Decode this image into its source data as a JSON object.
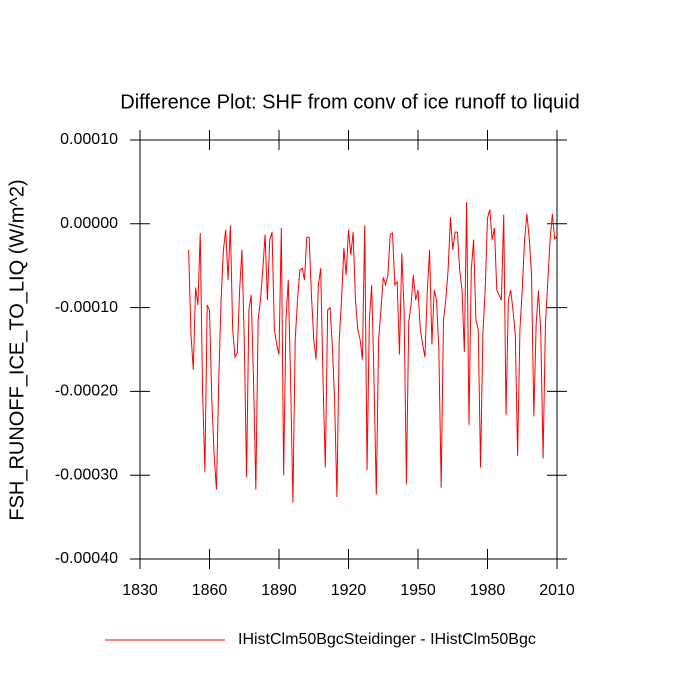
{
  "chart_data": {
    "type": "line",
    "title": "Difference Plot: SHF from conv of ice runoff to liquid",
    "y_label": "FSH_RUNOFF_ICE_TO_LIQ  (W/m^2)",
    "x": [
      1851,
      1852,
      1853,
      1854,
      1855,
      1856,
      1857,
      1858,
      1859,
      1860,
      1861,
      1862,
      1863,
      1864,
      1865,
      1866,
      1867,
      1868,
      1869,
      1870,
      1871,
      1872,
      1873,
      1874,
      1875,
      1876,
      1877,
      1878,
      1879,
      1880,
      1881,
      1882,
      1883,
      1884,
      1885,
      1886,
      1887,
      1888,
      1889,
      1890,
      1891,
      1892,
      1893,
      1894,
      1895,
      1896,
      1897,
      1898,
      1899,
      1900,
      1901,
      1902,
      1903,
      1904,
      1905,
      1906,
      1907,
      1908,
      1909,
      1910,
      1911,
      1912,
      1913,
      1914,
      1915,
      1916,
      1917,
      1918,
      1919,
      1920,
      1921,
      1922,
      1923,
      1924,
      1925,
      1926,
      1927,
      1928,
      1929,
      1930,
      1931,
      1932,
      1933,
      1934,
      1935,
      1936,
      1937,
      1938,
      1939,
      1940,
      1941,
      1942,
      1943,
      1944,
      1945,
      1946,
      1947,
      1948,
      1949,
      1950,
      1951,
      1952,
      1953,
      1954,
      1955,
      1956,
      1957,
      1958,
      1959,
      1960,
      1961,
      1962,
      1963,
      1964,
      1965,
      1966,
      1967,
      1968,
      1969,
      1970,
      1971,
      1972,
      1973,
      1974,
      1975,
      1976,
      1977,
      1978,
      1979,
      1980,
      1981,
      1982,
      1983,
      1984,
      1985,
      1986,
      1987,
      1988,
      1989,
      1990,
      1991,
      1992,
      1993,
      1994,
      1995,
      1996,
      1997,
      1998,
      1999,
      2000,
      2001,
      2002,
      2003,
      2004,
      2005,
      2006,
      2007,
      2008,
      2009,
      2010
    ],
    "series": [
      {
        "name": "IHistClm50BgcSteidinger - IHistClm50Bgc",
        "color": "#ff0000",
        "values": [
          -3.1e-05,
          -0.000132,
          -0.000174,
          -7.6e-05,
          -9.7e-05,
          -1.1e-05,
          -0.000198,
          -0.000296,
          -9.7e-05,
          -0.000103,
          -0.00021,
          -0.000276,
          -0.000317,
          -0.000186,
          -9.1e-05,
          -3.1e-05,
          -7e-06,
          -6.7e-05,
          -2e-06,
          -0.000126,
          -0.000159,
          -0.000154,
          -7.9e-05,
          -3.1e-05,
          -0.000138,
          -0.000302,
          -0.000103,
          -8.5e-05,
          -0.000186,
          -0.000317,
          -0.000115,
          -9.1e-05,
          -5.5e-05,
          -1.3e-05,
          -9.1e-05,
          -1.9e-05,
          -1e-05,
          -0.000126,
          -0.000144,
          -0.000156,
          -5e-06,
          -0.0003,
          -0.000115,
          -6.7e-05,
          -0.000186,
          -0.000333,
          -0.000138,
          -9.1e-05,
          -5.5e-05,
          -5.3e-05,
          -6.7e-05,
          -1.6e-05,
          -1.6e-05,
          -8.5e-05,
          -0.000138,
          -0.000162,
          -7.3e-05,
          -5.3e-05,
          -0.000186,
          -0.000291,
          -0.000103,
          -0.0001,
          -0.000144,
          -0.00021,
          -0.000326,
          -0.000138,
          -9.1e-05,
          -2.9e-05,
          -6.1e-05,
          -7e-06,
          -3.7e-05,
          -1e-05,
          -9.1e-05,
          -0.000126,
          -0.000138,
          -0.000162,
          -2e-06,
          -0.000294,
          -0.000115,
          -7.3e-05,
          -0.000186,
          -0.000323,
          -0.000138,
          -0.000103,
          -6.4e-05,
          -7.3e-05,
          -6.1e-05,
          -1.3e-05,
          -1.1e-05,
          -7.3e-05,
          -6.9e-05,
          -0.000156,
          -3.5e-05,
          -0.000103,
          -0.000311,
          -0.000117,
          -9.7e-05,
          -6.1e-05,
          -9.1e-05,
          -7.9e-05,
          -0.000126,
          -0.000144,
          -0.000159,
          -8.1e-05,
          -3.1e-05,
          -0.000144,
          -7.9e-05,
          -9.1e-05,
          -0.00015,
          -0.000315,
          -0.000115,
          -9.1e-05,
          -5.5e-05,
          8e-06,
          -3.1e-05,
          -1e-05,
          -1e-05,
          -5.5e-05,
          -7.9e-05,
          -0.000153,
          2.6e-05,
          -0.00024,
          -5.5e-05,
          -1.9e-05,
          -0.000115,
          -0.000126,
          -0.000291,
          -0.000132,
          -7.9e-05,
          7e-06,
          1.7e-05,
          -1.9e-05,
          -5e-06,
          -7.9e-05,
          -8.5e-05,
          -9.1e-05,
          1.1e-05,
          -0.000228,
          -9.1e-05,
          -7.9e-05,
          -0.000103,
          -0.000132,
          -0.000277,
          -0.000126,
          -7.9e-05,
          -1.9e-05,
          1.2e-05,
          -1.7e-05,
          -6e-05,
          -0.00023,
          -0.00012,
          -8e-05,
          -0.00013,
          -0.00028,
          -0.00012,
          -7e-05,
          -2e-05,
          1.2e-05,
          -1.8e-05,
          -1.5e-05
        ]
      }
    ],
    "xlim": [
      1830,
      2010
    ],
    "xticks": [
      1830,
      1860,
      1890,
      1920,
      1950,
      1980,
      2010
    ],
    "ylim": [
      -0.0004,
      0.0001
    ],
    "yticks": [
      {
        "value": -0.0004,
        "label": "-0.00040"
      },
      {
        "value": -0.0003,
        "label": "-0.00030"
      },
      {
        "value": -0.0002,
        "label": "-0.00020"
      },
      {
        "value": -0.0001,
        "label": "-0.00010"
      },
      {
        "value": 0,
        "label": "0.00000"
      },
      {
        "value": 0.0001,
        "label": "0.00010"
      }
    ],
    "grid": false,
    "legend": "bottom"
  }
}
